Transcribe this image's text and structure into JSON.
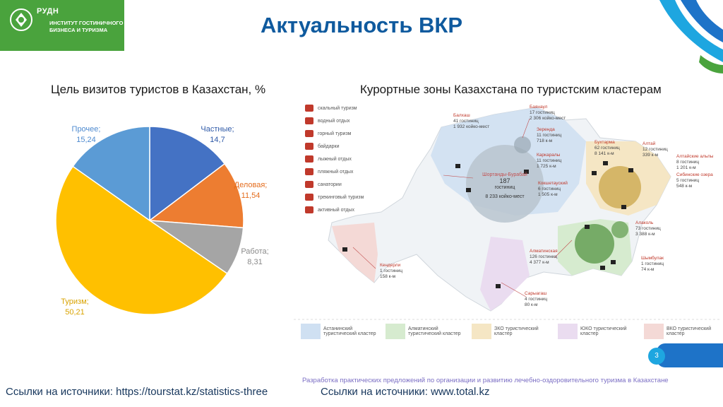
{
  "logo": {
    "org": "РУДН",
    "institute": "ИНСТИТУТ ГОСТИНИЧНОГО БИЗНЕСА И ТУРИЗМА"
  },
  "title": "Актуальность ВКР",
  "chart_subtitle": "Цель визитов туристов в Казахстан, %",
  "map_subtitle": "Курортные зоны Казахстана по туристским кластерам",
  "chart_data": {
    "type": "pie",
    "title": "Цель визитов туристов в Казахстан, %",
    "slices": [
      {
        "label": "Частные;",
        "value": 14.7,
        "value_text": "14,7",
        "color": "#4472c4"
      },
      {
        "label": "Деловая;",
        "value": 11.54,
        "value_text": "11,54",
        "color": "#ed7d31"
      },
      {
        "label": "Работа;",
        "value": 8.31,
        "value_text": "8,31",
        "color": "#a5a5a5"
      },
      {
        "label": "Туризм;",
        "value": 50.21,
        "value_text": "50,21",
        "color": "#ffc000"
      },
      {
        "label": "Прочее;",
        "value": 15.24,
        "value_text": "15,24",
        "color": "#5b9bd5"
      }
    ]
  },
  "map": {
    "legend_icons": [
      "скальный туризм",
      "водный отдых",
      "горный туризм",
      "байдарки",
      "лыжный отдых",
      "пляжный отдых",
      "санатории",
      "трекинговый туризм",
      "активный отдых"
    ],
    "places": [
      {
        "name": "Баянаул",
        "lines": [
          "17 гостиниц",
          "2 306 койко-мест"
        ]
      },
      {
        "name": "Балхаш",
        "lines": [
          "41 гостиниц",
          "1 932 койко-мест"
        ]
      },
      {
        "name": "Зеренда",
        "lines": [
          "11 гостиниц",
          "718 к-м"
        ]
      },
      {
        "name": "Бухтарма",
        "lines": [
          "62 гостиниц",
          "8 141 к-м"
        ]
      },
      {
        "name": "Алтай",
        "lines": [
          "12 гостиниц",
          "339 к-м"
        ]
      },
      {
        "name": "Каркаралы",
        "lines": [
          "11 гостиниц",
          "1 725 к-м"
        ]
      },
      {
        "name": "Алтайские альпы",
        "lines": [
          "8 гостиниц",
          "1 201 к-м"
        ]
      },
      {
        "name": "Кокшетауский",
        "lines": [
          "6 гостиниц",
          "1 505 к-м"
        ]
      },
      {
        "name": "Сибинские озера",
        "lines": [
          "5 гостиниц",
          "548 к-м"
        ]
      },
      {
        "name": "Алаколь",
        "lines": [
          "73 гостиниц",
          "3 388 к-м"
        ]
      },
      {
        "name": "Алматинская",
        "lines": [
          "126 гостиниц",
          "4 377 к-м"
        ]
      },
      {
        "name": "Шымбулак",
        "lines": [
          "1 гостиниц",
          "74 к-м"
        ]
      },
      {
        "name": "Кендерли",
        "lines": [
          "1 гостиниц",
          "158 к-м"
        ]
      },
      {
        "name": "Сарыагаш",
        "lines": [
          "4 гостиниц",
          "80 к-м"
        ]
      }
    ],
    "center": {
      "name": "Шортанды-Бурабай",
      "count": "187",
      "unit": "гостиниц",
      "beds": "8 233 койко-мест"
    },
    "cluster_legend": [
      {
        "label": "Астанинский туристический кластер",
        "color": "#cfe0f2"
      },
      {
        "label": "Алматинский туристический кластер",
        "color": "#d6ebcf"
      },
      {
        "label": "ЗКО туристический кластер",
        "color": "#f5e6c4"
      },
      {
        "label": "ЮКО туристический кластер",
        "color": "#eadcf0"
      },
      {
        "label": "ВКО туристический кластер",
        "color": "#f4d9d6"
      }
    ]
  },
  "page_number": "3",
  "footer_note": "Разработка практических предложений по организации и развитию лечебно-оздоровительного туризма в Казахстане",
  "sources_left": "Ссылки на источники: https://tourstat.kz/statistics-three",
  "sources_right": "Ссылки на источники: www.total.kz"
}
